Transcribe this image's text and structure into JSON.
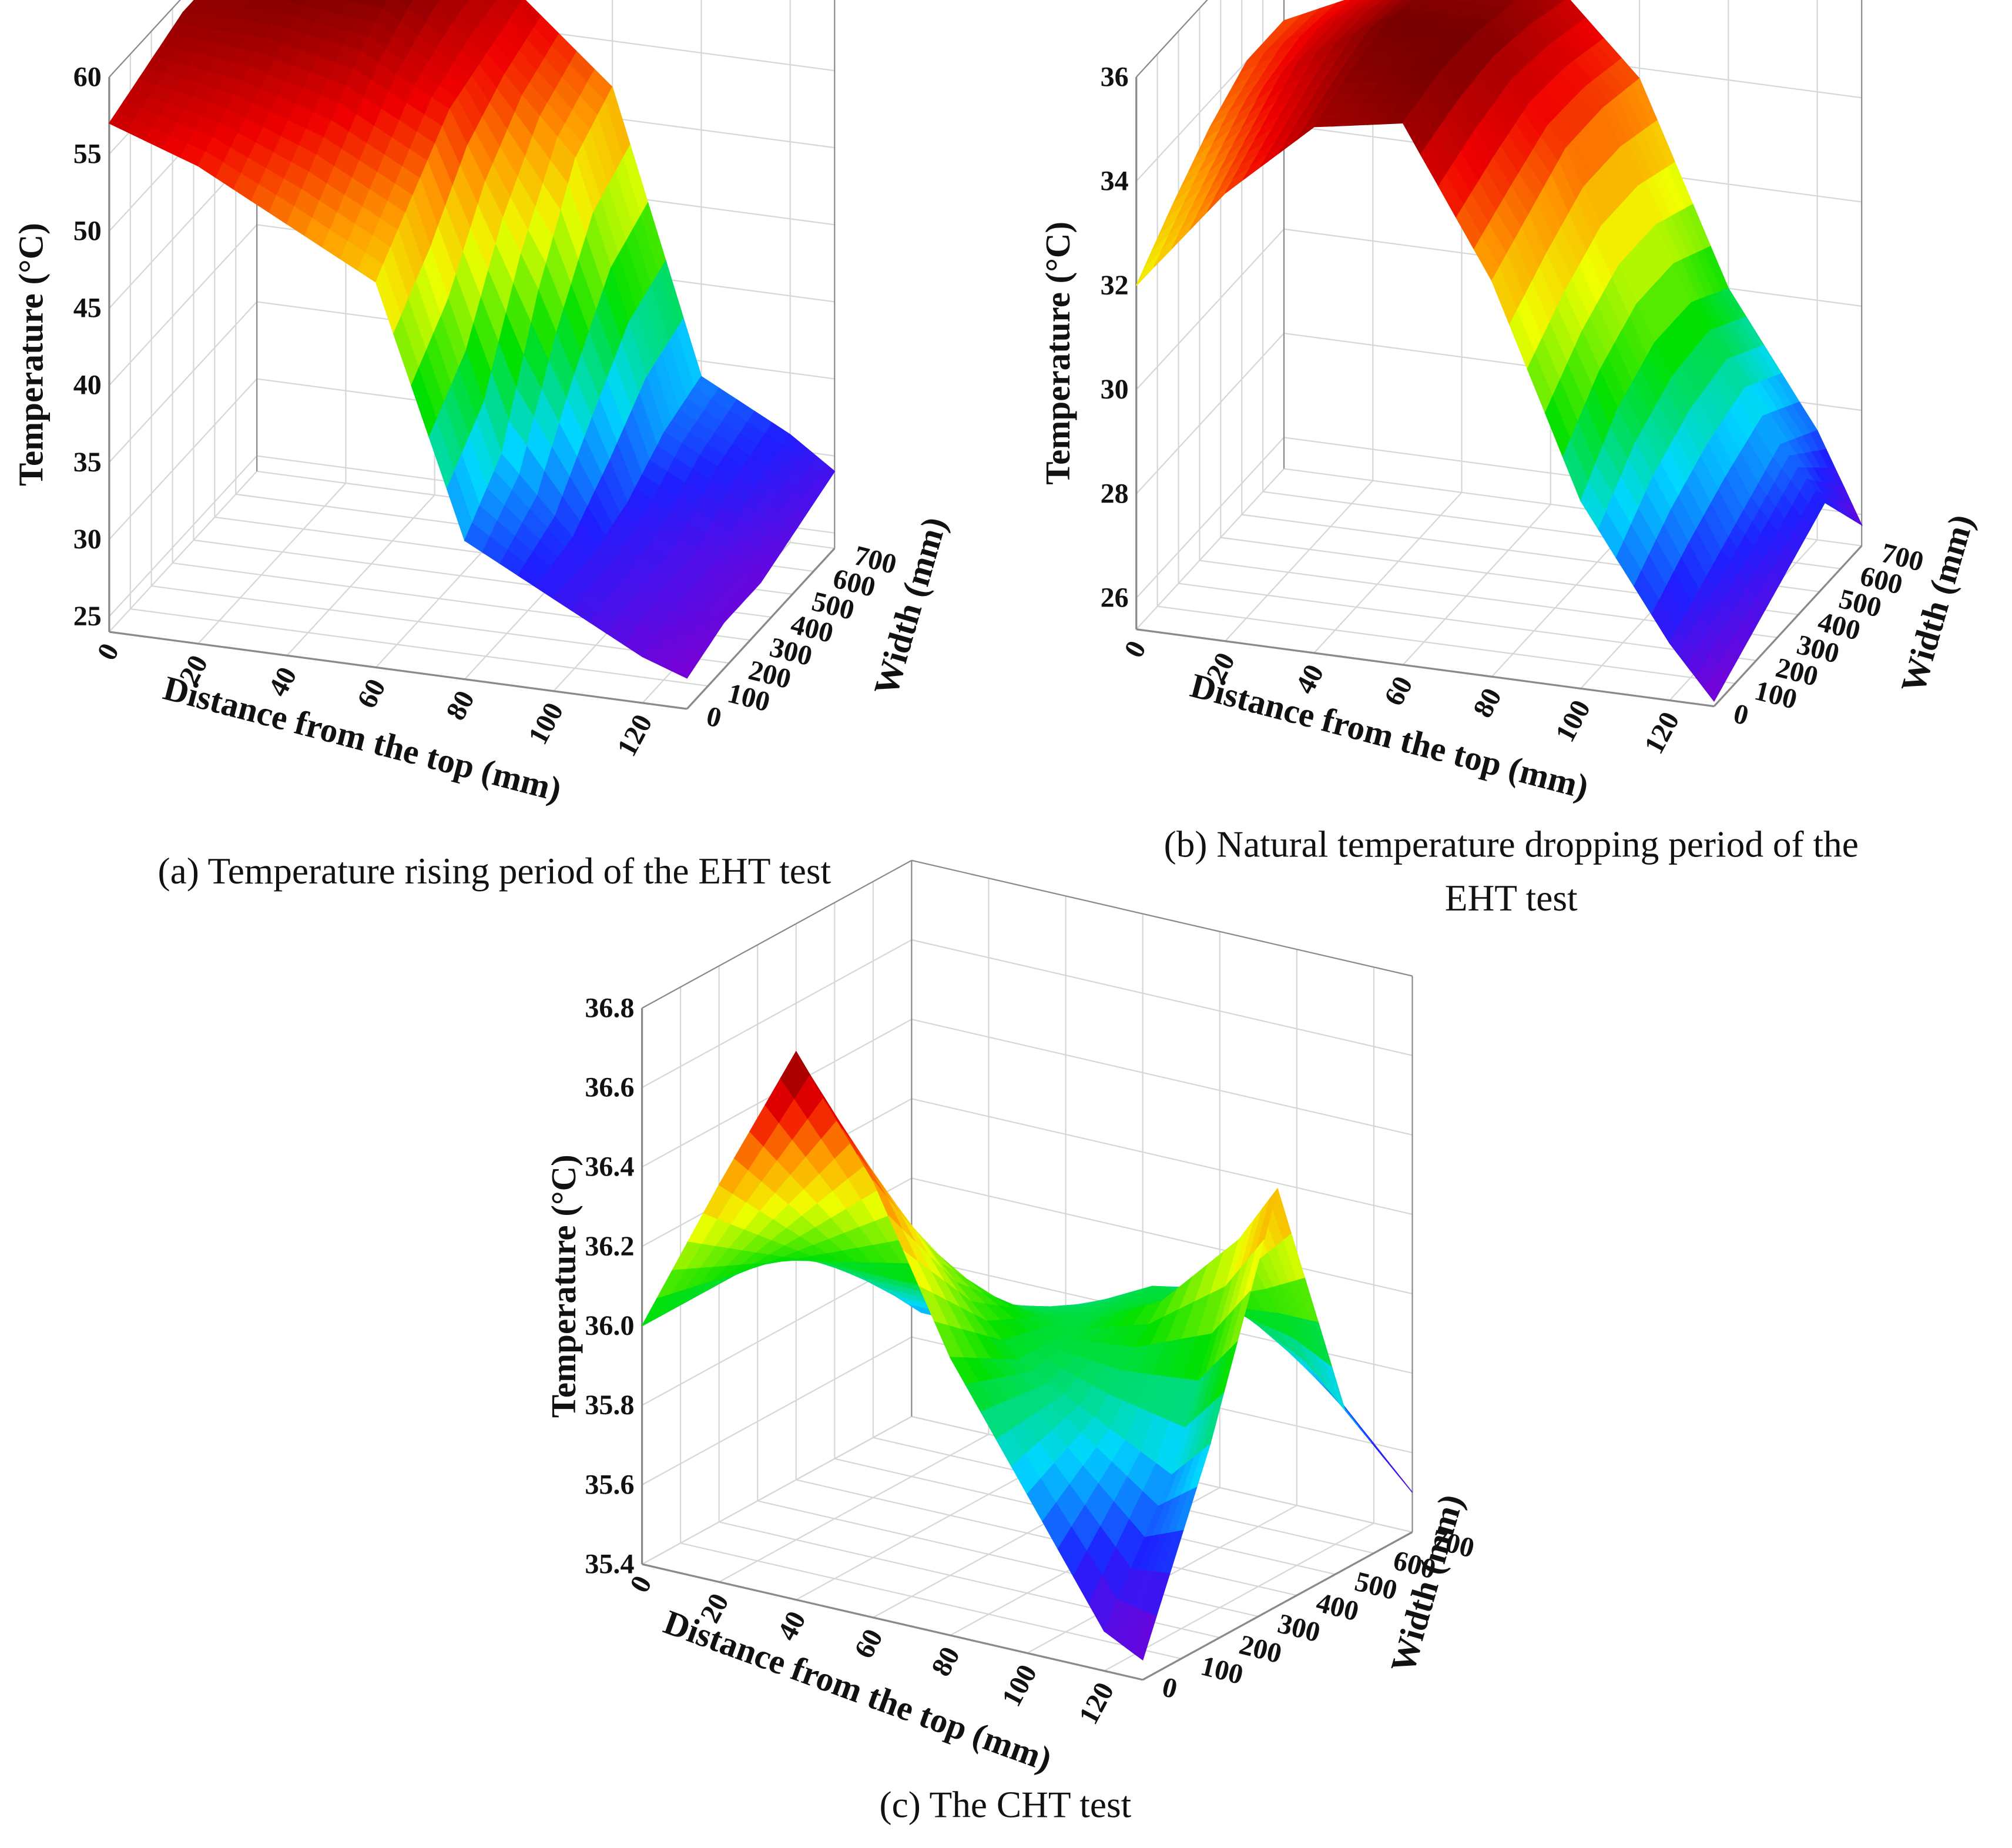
{
  "chart_data": [
    {
      "type": "surface",
      "x": [
        0,
        20,
        40,
        60,
        80,
        100,
        120,
        130
      ],
      "widths": [
        0,
        175,
        350,
        525,
        700
      ],
      "z": [
        [
          57,
          55,
          52,
          49,
          33,
          30,
          27,
          26
        ],
        [
          58,
          57,
          55,
          52,
          36,
          30,
          28,
          27
        ],
        [
          59,
          59,
          58,
          55,
          44,
          31,
          28,
          27
        ],
        [
          59,
          60,
          60,
          56,
          50,
          33,
          30,
          28
        ],
        [
          58,
          60,
          60,
          57,
          52,
          34,
          31,
          29
        ]
      ],
      "xlim": [
        0,
        130
      ],
      "xticks": [
        0,
        20,
        40,
        60,
        80,
        100,
        120
      ],
      "wlim": [
        0,
        700
      ],
      "wticks": [
        0,
        100,
        200,
        300,
        400,
        500,
        600,
        700
      ],
      "zlim": [
        24,
        60
      ],
      "zticks": [
        25,
        30,
        35,
        40,
        45,
        50,
        55,
        60
      ],
      "xlabel": "Distance from the top (mm)",
      "wlabel": "Width (mm)",
      "zlabel": "Temperature (°C)",
      "caption": [
        "(a) Temperature rising period of the EHT test"
      ]
    },
    {
      "type": "surface",
      "x": [
        0,
        20,
        40,
        60,
        80,
        100,
        120,
        130
      ],
      "widths": [
        0,
        175,
        350,
        525,
        700
      ],
      "z": [
        [
          32,
          34,
          35.5,
          35.8,
          33,
          29,
          26.5,
          25.5
        ],
        [
          32.8,
          34.5,
          35.8,
          36,
          33.5,
          30,
          27,
          26
        ],
        [
          33.5,
          35,
          36,
          36,
          34,
          30.5,
          27.5,
          26.5
        ],
        [
          34,
          35,
          35.8,
          35.8,
          34,
          30.5,
          28,
          27
        ],
        [
          34,
          34.8,
          35.5,
          35.5,
          33.8,
          30,
          27.5,
          25.8
        ]
      ],
      "xlim": [
        0,
        130
      ],
      "xticks": [
        0,
        20,
        40,
        60,
        80,
        100,
        120
      ],
      "wlim": [
        0,
        700
      ],
      "wticks": [
        0,
        100,
        200,
        300,
        400,
        500,
        600,
        700
      ],
      "zlim": [
        25.4,
        36
      ],
      "zticks": [
        26,
        28,
        30,
        32,
        34,
        36
      ],
      "xlabel": "Distance from the top (mm)",
      "wlabel": "Width (mm)",
      "zlabel": "Temperature (°C)",
      "caption": [
        "(b) Natural temperature dropping period of the",
        "EHT test"
      ]
    },
    {
      "type": "surface",
      "x": [
        0,
        20,
        40,
        60,
        80,
        100,
        120,
        130
      ],
      "widths": [
        0,
        175,
        350,
        525,
        700
      ],
      "z": [
        [
          36.0,
          36.4,
          36.78,
          36.5,
          36.1,
          35.8,
          35.5,
          35.45
        ],
        [
          36.0,
          36.2,
          36.4,
          36.2,
          36.0,
          35.9,
          35.8,
          35.9
        ],
        [
          36.0,
          36.0,
          36.0,
          36.0,
          36.0,
          36.1,
          36.3,
          36.45
        ],
        [
          35.9,
          35.8,
          35.8,
          35.9,
          36.0,
          36.0,
          35.9,
          35.8
        ],
        [
          35.75,
          35.7,
          35.7,
          35.8,
          35.9,
          35.8,
          35.6,
          35.5
        ]
      ],
      "xlim": [
        0,
        130
      ],
      "xticks": [
        0,
        20,
        40,
        60,
        80,
        100,
        120
      ],
      "wlim": [
        0,
        700
      ],
      "wticks": [
        0,
        100,
        200,
        300,
        400,
        500,
        600,
        700
      ],
      "zlim": [
        35.4,
        36.8
      ],
      "zticks": [
        35.4,
        35.6,
        35.8,
        {
          "value": 36,
          "label": "36.0"
        },
        36.2,
        36.4,
        36.6,
        36.8
      ],
      "xlabel": "Distance from the top (mm)",
      "wlabel": "Width (mm)",
      "zlabel": "Temperature (°C)",
      "caption": [
        "(c) The CHT test"
      ]
    }
  ]
}
